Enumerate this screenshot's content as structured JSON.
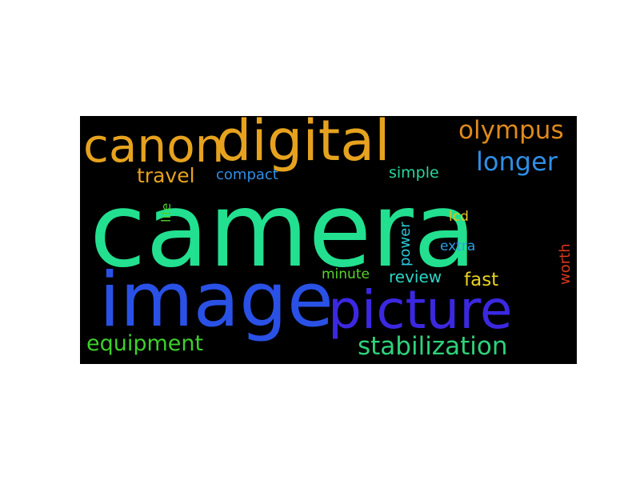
{
  "cloud": {
    "background": "#000000",
    "words": [
      {
        "text": "camera",
        "color": "#22e08f",
        "rotated": false
      },
      {
        "text": "digital",
        "color": "#e6a21e",
        "rotated": false
      },
      {
        "text": "canon",
        "color": "#e6a21e",
        "rotated": false
      },
      {
        "text": "image",
        "color": "#2a51e6",
        "rotated": false
      },
      {
        "text": "picture",
        "color": "#3b28e0",
        "rotated": false
      },
      {
        "text": "olympus",
        "color": "#e08a1c",
        "rotated": false
      },
      {
        "text": "longer",
        "color": "#2f8ee6",
        "rotated": false
      },
      {
        "text": "stabilization",
        "color": "#2ed27a",
        "rotated": false
      },
      {
        "text": "equipment",
        "color": "#3ecf2c",
        "rotated": false
      },
      {
        "text": "travel",
        "color": "#e6a21e",
        "rotated": false
      },
      {
        "text": "compact",
        "color": "#2f8ee6",
        "rotated": false
      },
      {
        "text": "simple",
        "color": "#28d79c",
        "rotated": false
      },
      {
        "text": "fast",
        "color": "#e8d21e",
        "rotated": false
      },
      {
        "text": "review",
        "color": "#2bd4c6",
        "rotated": false
      },
      {
        "text": "minute",
        "color": "#5ad42a",
        "rotated": false
      },
      {
        "text": "lcd",
        "color": "#e6c21e",
        "rotated": false
      },
      {
        "text": "extra",
        "color": "#2f9ee6",
        "rotated": false
      },
      {
        "text": "life",
        "color": "#4fd12a",
        "rotated": true
      },
      {
        "text": "power",
        "color": "#2bc7d6",
        "rotated": true
      },
      {
        "text": "worth",
        "color": "#d8381c",
        "rotated": true
      }
    ]
  }
}
